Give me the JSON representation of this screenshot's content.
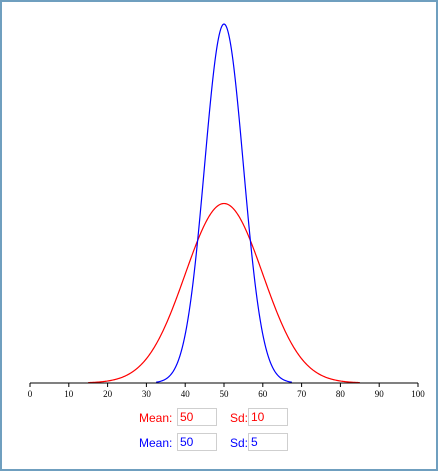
{
  "chart_data": {
    "type": "line",
    "xlim": [
      0,
      100
    ],
    "x_ticks": [
      0,
      10,
      20,
      30,
      40,
      50,
      60,
      70,
      80,
      90,
      100
    ],
    "ymax": 0.0798,
    "grid": false,
    "series": [
      {
        "mean": 50,
        "sd": 10,
        "color": "#ff0000"
      },
      {
        "mean": 50,
        "sd": 5,
        "color": "#0000ff"
      }
    ]
  },
  "controls": {
    "red": {
      "mean_label": "Mean:",
      "mean_value": "50",
      "sd_label": "Sd:",
      "sd_value": "10",
      "color": "#ff0000"
    },
    "blue": {
      "mean_label": "Mean:",
      "mean_value": "50",
      "sd_label": "Sd:",
      "sd_value": "5",
      "color": "#0000ff"
    }
  }
}
